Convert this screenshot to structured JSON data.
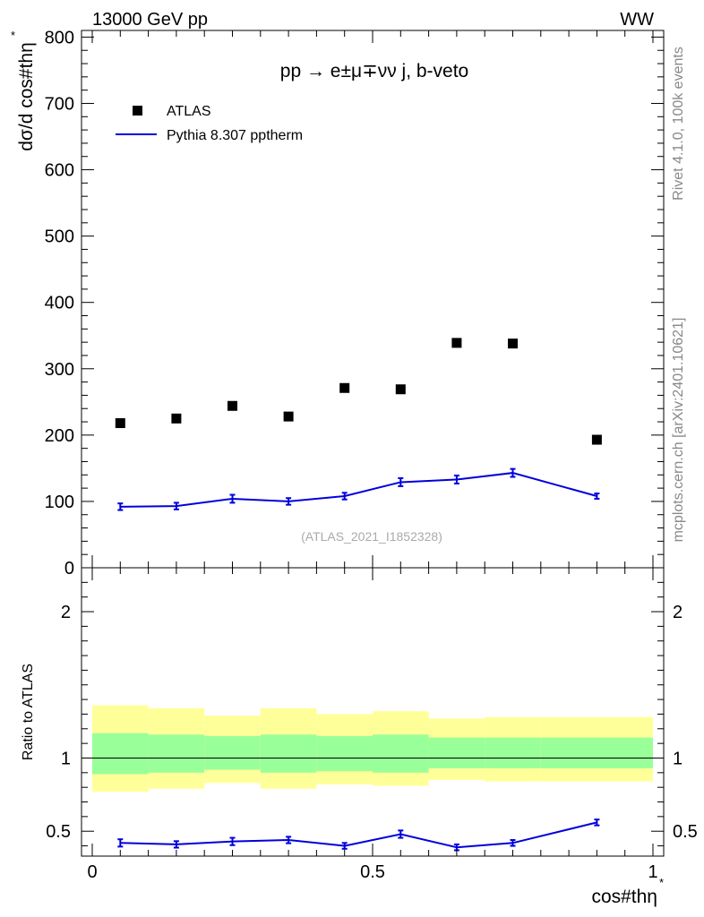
{
  "header": {
    "left": "13000 GeV pp",
    "right": "WW"
  },
  "side_text": {
    "rivet": "Rivet 4.1.0,  100k events",
    "mcplots": "mcplots.cern.ch [arXiv:2401.10621]"
  },
  "chart_data": [
    {
      "type": "scatter",
      "title": "pp  →  e±μ∓νν j, b-veto",
      "ylabel": "dσ/d cos#thη",
      "ylabel_superscript": "*",
      "watermark": "(ATLAS_2021_I1852328)",
      "xlim": [
        0,
        1
      ],
      "ylim": [
        0,
        810
      ],
      "y_ticks": [
        0,
        100,
        200,
        300,
        400,
        500,
        600,
        700,
        800
      ],
      "y_tick_labels": [
        "0",
        "100",
        "200",
        "300",
        "400",
        "500",
        "600",
        "700",
        "800"
      ],
      "bin_edges": [
        0,
        0.1,
        0.2,
        0.3,
        0.4,
        0.5,
        0.6,
        0.7,
        0.8,
        1.0
      ],
      "legend": {
        "position": "top-left",
        "entries": [
          {
            "label": "ATLAS",
            "style": "marker",
            "color": "#000000"
          },
          {
            "label": "Pythia 8.307 pptherm",
            "style": "line",
            "color": "#0000dd"
          }
        ]
      },
      "series": [
        {
          "name": "ATLAS",
          "x": [
            0.05,
            0.15,
            0.25,
            0.35,
            0.45,
            0.55,
            0.65,
            0.75,
            0.9
          ],
          "values": [
            218,
            225,
            244,
            228,
            271,
            269,
            339,
            338,
            193
          ]
        },
        {
          "name": "Pythia 8.307 pptherm",
          "x": [
            0.05,
            0.15,
            0.25,
            0.35,
            0.45,
            0.55,
            0.65,
            0.75,
            0.9
          ],
          "values": [
            92,
            93,
            104,
            100,
            108,
            129,
            133,
            143,
            108
          ],
          "errors": [
            5,
            5,
            6,
            5,
            5,
            6,
            6,
            6,
            4
          ]
        }
      ]
    },
    {
      "type": "line",
      "ylabel": "Ratio to ATLAS",
      "xlabel": "cos#thη",
      "xlabel_superscript": "*",
      "xlim": [
        0,
        1
      ],
      "ylim": [
        0.33,
        2.3
      ],
      "x_ticks": [
        0,
        0.5,
        1
      ],
      "x_tick_labels": [
        "0",
        "0.5",
        "1"
      ],
      "y_ticks": [
        0.5,
        1,
        2
      ],
      "y_tick_labels": [
        "0.5",
        "1",
        "2"
      ],
      "reference_line": 1,
      "bands": {
        "bin_edges": [
          0,
          0.1,
          0.2,
          0.3,
          0.4,
          0.5,
          0.6,
          0.7,
          0.8,
          1.0
        ],
        "inner_color": "#99ff99",
        "outer_color": "#ffff99",
        "inner_low": [
          0.89,
          0.9,
          0.92,
          0.9,
          0.91,
          0.9,
          0.93,
          0.93,
          0.93
        ],
        "inner_high": [
          1.17,
          1.16,
          1.15,
          1.16,
          1.15,
          1.16,
          1.14,
          1.14,
          1.14
        ],
        "outer_low": [
          0.77,
          0.79,
          0.83,
          0.79,
          0.82,
          0.81,
          0.85,
          0.84,
          0.84
        ],
        "outer_high": [
          1.36,
          1.34,
          1.29,
          1.34,
          1.3,
          1.32,
          1.27,
          1.28,
          1.28
        ]
      },
      "series": [
        {
          "name": "Pythia 8.307 pptherm / ATLAS",
          "x": [
            0.05,
            0.15,
            0.25,
            0.35,
            0.45,
            0.55,
            0.65,
            0.75,
            0.9
          ],
          "values": [
            0.42,
            0.41,
            0.43,
            0.44,
            0.4,
            0.48,
            0.39,
            0.42,
            0.56
          ],
          "errors": [
            0.025,
            0.022,
            0.025,
            0.022,
            0.02,
            0.025,
            0.02,
            0.02,
            0.02
          ],
          "color": "#0000dd"
        }
      ]
    }
  ]
}
